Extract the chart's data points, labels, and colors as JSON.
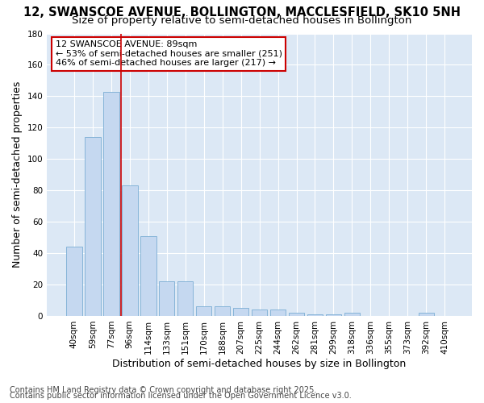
{
  "title": "12, SWANSCOE AVENUE, BOLLINGTON, MACCLESFIELD, SK10 5NH",
  "subtitle": "Size of property relative to semi-detached houses in Bollington",
  "xlabel": "Distribution of semi-detached houses by size in Bollington",
  "ylabel": "Number of semi-detached properties",
  "bin_labels": [
    "40sqm",
    "59sqm",
    "77sqm",
    "96sqm",
    "114sqm",
    "133sqm",
    "151sqm",
    "170sqm",
    "188sqm",
    "207sqm",
    "225sqm",
    "244sqm",
    "262sqm",
    "281sqm",
    "299sqm",
    "318sqm",
    "336sqm",
    "355sqm",
    "373sqm",
    "392sqm",
    "410sqm"
  ],
  "values": [
    44,
    114,
    143,
    83,
    51,
    22,
    22,
    6,
    6,
    5,
    4,
    4,
    2,
    1,
    1,
    2,
    0,
    0,
    0,
    2,
    0
  ],
  "bar_color": "#c5d8f0",
  "bar_edge_color": "#7aadd4",
  "vline_color": "#cc0000",
  "vline_x": 2.55,
  "annotation_text": "12 SWANSCOE AVENUE: 89sqm\n← 53% of semi-detached houses are smaller (251)\n46% of semi-detached houses are larger (217) →",
  "annotation_box_color": "#ffffff",
  "annotation_box_edge": "#cc0000",
  "ylim": [
    0,
    180
  ],
  "yticks": [
    0,
    20,
    40,
    60,
    80,
    100,
    120,
    140,
    160,
    180
  ],
  "footer1": "Contains HM Land Registry data © Crown copyright and database right 2025.",
  "footer2": "Contains public sector information licensed under the Open Government Licence v3.0.",
  "background_color": "#dce8f5",
  "fig_background": "#ffffff",
  "grid_color": "#ffffff",
  "title_fontsize": 10.5,
  "subtitle_fontsize": 9.5,
  "axis_label_fontsize": 9,
  "tick_fontsize": 7.5,
  "annotation_fontsize": 8,
  "footer_fontsize": 7
}
